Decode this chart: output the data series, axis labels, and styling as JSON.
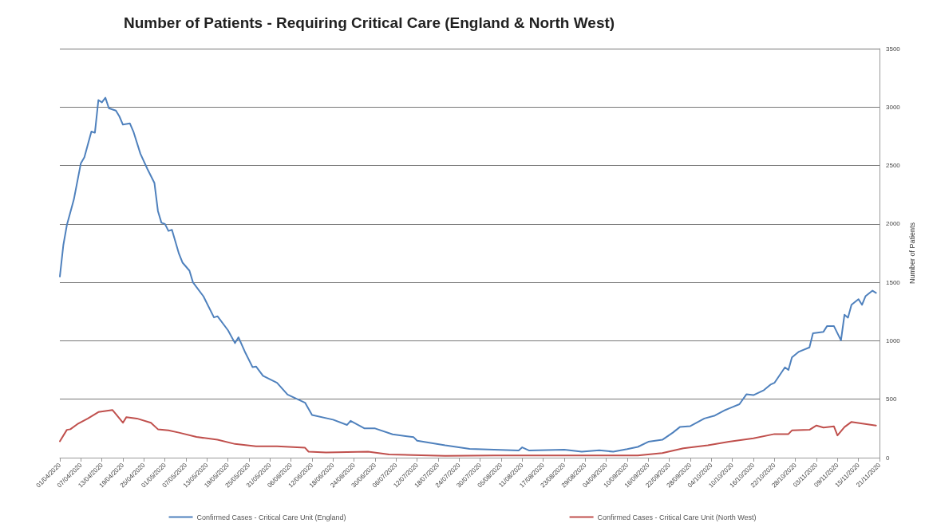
{
  "chart_data": {
    "type": "line",
    "title": "Number of Patients - Requiring Critical Care (England & North West)",
    "ylabel": "Number of Patients",
    "xlim": [
      "2020-04-01",
      "2020-11-21"
    ],
    "xticks": [
      {
        "value": "2020-04-01",
        "label": "01/04/2020"
      },
      {
        "value": "2020-04-07",
        "label": "07/04/2020"
      },
      {
        "value": "2020-04-13",
        "label": "13/04/2020"
      },
      {
        "value": "2020-04-19",
        "label": "19/04/2020"
      },
      {
        "value": "2020-04-25",
        "label": "25/04/2020"
      },
      {
        "value": "2020-05-01",
        "label": "01/05/2020"
      },
      {
        "value": "2020-05-07",
        "label": "07/05/2020"
      },
      {
        "value": "2020-05-13",
        "label": "13/05/2020"
      },
      {
        "value": "2020-05-19",
        "label": "19/05/2020"
      },
      {
        "value": "2020-05-25",
        "label": "25/05/2020"
      },
      {
        "value": "2020-05-31",
        "label": "31/05/2020"
      },
      {
        "value": "2020-06-06",
        "label": "06/06/2020"
      },
      {
        "value": "2020-06-12",
        "label": "12/06/2020"
      },
      {
        "value": "2020-06-18",
        "label": "18/06/2020"
      },
      {
        "value": "2020-06-24",
        "label": "24/06/2020"
      },
      {
        "value": "2020-06-30",
        "label": "30/06/2020"
      },
      {
        "value": "2020-07-06",
        "label": "06/07/2020"
      },
      {
        "value": "2020-07-12",
        "label": "12/07/2020"
      },
      {
        "value": "2020-07-18",
        "label": "18/07/2020"
      },
      {
        "value": "2020-07-24",
        "label": "24/07/2020"
      },
      {
        "value": "2020-07-30",
        "label": "30/07/2020"
      },
      {
        "value": "2020-08-05",
        "label": "05/08/2020"
      },
      {
        "value": "2020-08-11",
        "label": "11/08/2020"
      },
      {
        "value": "2020-08-17",
        "label": "17/08/2020"
      },
      {
        "value": "2020-08-23",
        "label": "23/08/2020"
      },
      {
        "value": "2020-08-29",
        "label": "29/08/2020"
      },
      {
        "value": "2020-09-04",
        "label": "04/09/2020"
      },
      {
        "value": "2020-09-10",
        "label": "10/09/2020"
      },
      {
        "value": "2020-09-16",
        "label": "16/09/2020"
      },
      {
        "value": "2020-09-22",
        "label": "22/09/2020"
      },
      {
        "value": "2020-09-28",
        "label": "28/09/2020"
      },
      {
        "value": "2020-10-04",
        "label": "04/10/2020"
      },
      {
        "value": "2020-10-10",
        "label": "10/10/2020"
      },
      {
        "value": "2020-10-16",
        "label": "16/10/2020"
      },
      {
        "value": "2020-10-22",
        "label": "22/10/2020"
      },
      {
        "value": "2020-10-28",
        "label": "28/10/2020"
      },
      {
        "value": "2020-11-03",
        "label": "03/11/2020"
      },
      {
        "value": "2020-11-09",
        "label": "09/11/2020"
      },
      {
        "value": "2020-11-15",
        "label": "15/11/2020"
      },
      {
        "value": "2020-11-21",
        "label": "21/11/2020"
      }
    ],
    "ylim": [
      0,
      3500
    ],
    "yticks": [
      0,
      500,
      1000,
      1500,
      2000,
      2500,
      3000,
      3500
    ],
    "grid": "y",
    "legend": "bottom",
    "marker": "none",
    "line_style": "solid",
    "series": [
      {
        "name": "Confirmed Cases - Critical Care Unit (England)",
        "color": "#4f81bd",
        "x": [
          "2020-04-01",
          "2020-04-02",
          "2020-04-03",
          "2020-04-05",
          "2020-04-07",
          "2020-04-08",
          "2020-04-10",
          "2020-04-11",
          "2020-04-12",
          "2020-04-13",
          "2020-04-14",
          "2020-04-15",
          "2020-04-17",
          "2020-04-18",
          "2020-04-19",
          "2020-04-21",
          "2020-04-22",
          "2020-04-24",
          "2020-04-26",
          "2020-04-28",
          "2020-04-29",
          "2020-04-30",
          "2020-05-01",
          "2020-05-02",
          "2020-05-03",
          "2020-05-05",
          "2020-05-06",
          "2020-05-08",
          "2020-05-09",
          "2020-05-12",
          "2020-05-15",
          "2020-05-16",
          "2020-05-19",
          "2020-05-21",
          "2020-05-22",
          "2020-05-24",
          "2020-05-26",
          "2020-05-27",
          "2020-05-29",
          "2020-06-02",
          "2020-06-05",
          "2020-06-10",
          "2020-06-12",
          "2020-06-18",
          "2020-06-22",
          "2020-06-23",
          "2020-06-27",
          "2020-06-30",
          "2020-07-05",
          "2020-07-11",
          "2020-07-12",
          "2020-07-20",
          "2020-07-27",
          "2020-08-03",
          "2020-08-10",
          "2020-08-11",
          "2020-08-13",
          "2020-08-23",
          "2020-08-28",
          "2020-09-02",
          "2020-09-06",
          "2020-09-10",
          "2020-09-13",
          "2020-09-16",
          "2020-09-20",
          "2020-09-23",
          "2020-09-25",
          "2020-09-28",
          "2020-10-02",
          "2020-10-05",
          "2020-10-08",
          "2020-10-09",
          "2020-10-12",
          "2020-10-14",
          "2020-10-16",
          "2020-10-19",
          "2020-10-21",
          "2020-10-22",
          "2020-10-25",
          "2020-10-26",
          "2020-10-27",
          "2020-10-29",
          "2020-11-01",
          "2020-11-02",
          "2020-11-05",
          "2020-11-06",
          "2020-11-08",
          "2020-11-10",
          "2020-11-11",
          "2020-11-12",
          "2020-11-13",
          "2020-11-15",
          "2020-11-16",
          "2020-11-17",
          "2020-11-19",
          "2020-11-20"
        ],
        "values": [
          1550,
          1820,
          1990,
          2210,
          2520,
          2570,
          2790,
          2780,
          3060,
          3040,
          3080,
          2990,
          2970,
          2920,
          2850,
          2860,
          2790,
          2600,
          2470,
          2350,
          2110,
          2010,
          2000,
          1940,
          1950,
          1745,
          1670,
          1600,
          1500,
          1380,
          1200,
          1210,
          1090,
          980,
          1030,
          895,
          775,
          780,
          700,
          640,
          540,
          470,
          365,
          325,
          280,
          315,
          250,
          250,
          200,
          175,
          145,
          105,
          75,
          68,
          61,
          88,
          61,
          68,
          51,
          63,
          51,
          73,
          92,
          136,
          153,
          214,
          262,
          270,
          335,
          360,
          408,
          420,
          457,
          542,
          535,
          578,
          627,
          640,
          773,
          750,
          858,
          907,
          943,
          1065,
          1077,
          1125,
          1125,
          1004,
          1223,
          1198,
          1308,
          1356,
          1308,
          1381,
          1429,
          1410
        ]
      },
      {
        "name": "Confirmed Cases - Critical Care Unit (North West)",
        "color": "#c0504d",
        "x": [
          "2020-04-01",
          "2020-04-03",
          "2020-04-04",
          "2020-04-06",
          "2020-04-09",
          "2020-04-12",
          "2020-04-16",
          "2020-04-17",
          "2020-04-19",
          "2020-04-20",
          "2020-04-23",
          "2020-04-27",
          "2020-04-29",
          "2020-05-02",
          "2020-05-05",
          "2020-05-10",
          "2020-05-16",
          "2020-05-21",
          "2020-05-27",
          "2020-06-02",
          "2020-06-10",
          "2020-06-11",
          "2020-06-16",
          "2020-06-28",
          "2020-07-04",
          "2020-07-20",
          "2020-08-03",
          "2020-08-23",
          "2020-09-13",
          "2020-09-20",
          "2020-09-26",
          "2020-10-03",
          "2020-10-09",
          "2020-10-16",
          "2020-10-22",
          "2020-10-26",
          "2020-10-27",
          "2020-11-01",
          "2020-11-03",
          "2020-11-05",
          "2020-11-08",
          "2020-11-09",
          "2020-11-11",
          "2020-11-13",
          "2020-11-20"
        ],
        "values": [
          140,
          238,
          243,
          287,
          335,
          390,
          408,
          372,
          299,
          347,
          335,
          299,
          243,
          233,
          214,
          177,
          153,
          117,
          97,
          97,
          85,
          51,
          44,
          51,
          27,
          15,
          19,
          19,
          19,
          39,
          80,
          105,
          136,
          165,
          202,
          202,
          233,
          238,
          275,
          257,
          267,
          190,
          262,
          306,
          275
        ]
      }
    ]
  }
}
